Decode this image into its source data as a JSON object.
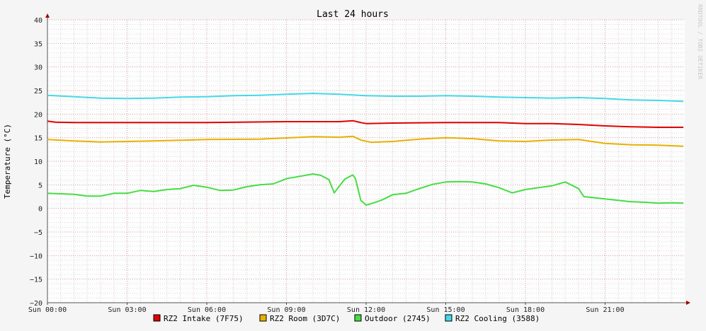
{
  "chart_data": {
    "type": "line",
    "title": "Last 24 hours",
    "ylabel": "Temperature (°C)",
    "xlabel": "",
    "watermark": "RRDTOOL / TOBI OETIKER",
    "ylim": [
      -20,
      40
    ],
    "yticks": [
      40,
      35,
      30,
      25,
      20,
      15,
      10,
      5,
      0,
      -5,
      -10,
      -15,
      -20
    ],
    "ytick_labels": [
      "40",
      "35",
      "30",
      "25",
      "20",
      "15",
      "10",
      "5",
      "0",
      "−5",
      "−10",
      "−15",
      "−20"
    ],
    "xlim": [
      0,
      24
    ],
    "xticks": [
      0,
      3,
      6,
      9,
      12,
      15,
      18,
      21
    ],
    "xtick_labels": [
      "Sun 00:00",
      "Sun 03:00",
      "Sun 06:00",
      "Sun 09:00",
      "Sun 12:00",
      "Sun 15:00",
      "Sun 18:00",
      "Sun 21:00"
    ],
    "grid": true,
    "legend_position": "bottom",
    "series": [
      {
        "name": "RZ2 Intake (7F75)",
        "color": "#e00000",
        "x": [
          0,
          0.3,
          1,
          3,
          6,
          9,
          10,
          11,
          11.5,
          11.8,
          12,
          13,
          15,
          17,
          18,
          19,
          20,
          21,
          22,
          23,
          23.95
        ],
        "y": [
          18.5,
          18.3,
          18.2,
          18.2,
          18.2,
          18.4,
          18.4,
          18.4,
          18.6,
          18.2,
          18.0,
          18.1,
          18.2,
          18.2,
          18.0,
          18.0,
          17.8,
          17.5,
          17.3,
          17.2,
          17.2
        ]
      },
      {
        "name": "RZ2 Room (3D7C)",
        "color": "#e8b000",
        "x": [
          0,
          1,
          2,
          4,
          6,
          8,
          10,
          11,
          11.5,
          11.8,
          12.2,
          13,
          14,
          15,
          16,
          17,
          18,
          19,
          20,
          21,
          22,
          23,
          23.95
        ],
        "y": [
          14.6,
          14.3,
          14.1,
          14.3,
          14.6,
          14.7,
          15.2,
          15.1,
          15.3,
          14.5,
          14.0,
          14.2,
          14.7,
          15.0,
          14.8,
          14.3,
          14.2,
          14.5,
          14.6,
          13.8,
          13.5,
          13.4,
          13.2
        ]
      },
      {
        "name": "Outdoor (2745)",
        "color": "#44dd44",
        "x": [
          0,
          0.5,
          1,
          1.5,
          2,
          2.5,
          3,
          3.5,
          4,
          4.5,
          5,
          5.5,
          6,
          6.5,
          7,
          7.5,
          8,
          8.5,
          9,
          9.5,
          10,
          10.3,
          10.6,
          10.8,
          11,
          11.2,
          11.5,
          11.6,
          11.8,
          12,
          12.3,
          12.6,
          13,
          13.5,
          14,
          14.5,
          15,
          15.5,
          16,
          16.5,
          17,
          17.5,
          18,
          18.5,
          19,
          19.5,
          20,
          20.2,
          21,
          22,
          22.5,
          23,
          23.5,
          23.95
        ],
        "y": [
          3.2,
          3.1,
          3.0,
          2.6,
          2.6,
          3.2,
          3.2,
          3.8,
          3.6,
          4.0,
          4.2,
          4.9,
          4.5,
          3.8,
          3.9,
          4.6,
          5.0,
          5.2,
          6.3,
          6.8,
          7.3,
          7.0,
          6.1,
          3.3,
          4.8,
          6.2,
          7.1,
          6.3,
          1.7,
          0.7,
          1.2,
          1.8,
          2.9,
          3.2,
          4.2,
          5.1,
          5.6,
          5.7,
          5.6,
          5.2,
          4.4,
          3.3,
          4.0,
          4.4,
          4.8,
          5.6,
          4.2,
          2.5,
          2.0,
          1.4,
          1.3,
          1.1,
          1.2,
          1.1
        ]
      },
      {
        "name": "RZ2 Cooling (3588)",
        "color": "#44d8e8",
        "x": [
          0,
          1,
          2,
          3,
          4,
          5,
          6,
          7,
          8,
          9,
          10,
          11,
          12,
          13,
          14,
          15,
          16,
          17,
          18,
          19,
          20,
          21,
          22,
          23,
          23.95
        ],
        "y": [
          24.0,
          23.7,
          23.4,
          23.3,
          23.4,
          23.6,
          23.7,
          23.9,
          24.0,
          24.2,
          24.4,
          24.2,
          23.9,
          23.8,
          23.8,
          23.9,
          23.8,
          23.6,
          23.5,
          23.4,
          23.5,
          23.3,
          23.0,
          22.9,
          22.7
        ]
      }
    ]
  }
}
